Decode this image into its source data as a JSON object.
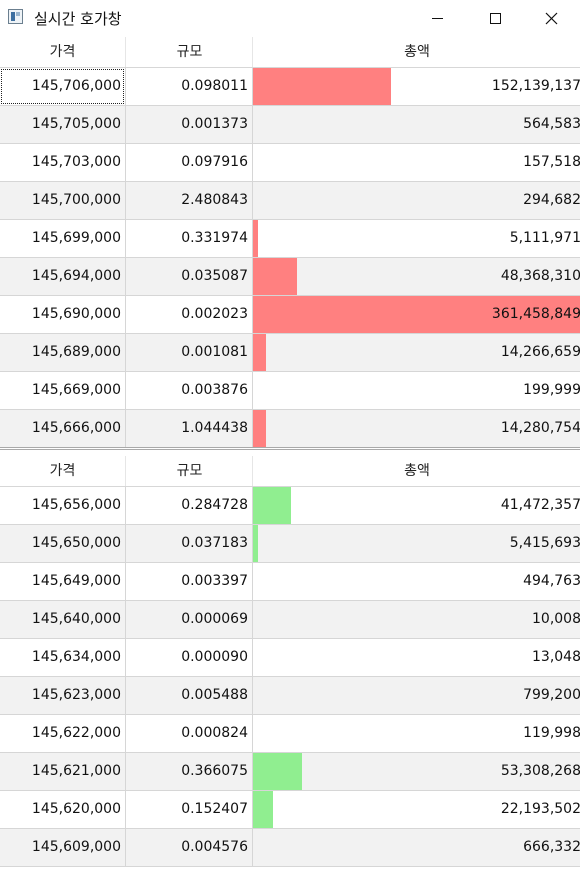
{
  "window": {
    "title": "실시간 호가창",
    "icon": "app-window-icon",
    "controls": [
      "minimize-icon",
      "maximize-icon",
      "close-icon"
    ]
  },
  "columns": {
    "price": "가격",
    "size": "규모",
    "total": "총액"
  },
  "colors": {
    "ask_bar": "#ff8080",
    "bid_bar": "#90ee90"
  },
  "ask": {
    "rows": [
      {
        "price": "145,706,000",
        "size": "0.098011",
        "total": "152,139,137",
        "bar_pct": 0.42
      },
      {
        "price": "145,705,000",
        "size": "0.001373",
        "total": "564,583",
        "bar_pct": 0
      },
      {
        "price": "145,703,000",
        "size": "0.097916",
        "total": "157,518",
        "bar_pct": 0
      },
      {
        "price": "145,700,000",
        "size": "2.480843",
        "total": "294,682",
        "bar_pct": 0
      },
      {
        "price": "145,699,000",
        "size": "0.331974",
        "total": "5,111,971",
        "bar_pct": 0.014
      },
      {
        "price": "145,694,000",
        "size": "0.035087",
        "total": "48,368,310",
        "bar_pct": 0.134
      },
      {
        "price": "145,690,000",
        "size": "0.002023",
        "total": "361,458,849",
        "bar_pct": 1.0
      },
      {
        "price": "145,689,000",
        "size": "0.001081",
        "total": "14,266,659",
        "bar_pct": 0.04
      },
      {
        "price": "145,669,000",
        "size": "0.003876",
        "total": "199,999",
        "bar_pct": 0
      },
      {
        "price": "145,666,000",
        "size": "1.044438",
        "total": "14,280,754",
        "bar_pct": 0.04
      }
    ]
  },
  "bid": {
    "rows": [
      {
        "price": "145,656,000",
        "size": "0.284728",
        "total": "41,472,357",
        "bar_pct": 0.115
      },
      {
        "price": "145,650,000",
        "size": "0.037183",
        "total": "5,415,693",
        "bar_pct": 0.015
      },
      {
        "price": "145,649,000",
        "size": "0.003397",
        "total": "494,763",
        "bar_pct": 0
      },
      {
        "price": "145,640,000",
        "size": "0.000069",
        "total": "10,008",
        "bar_pct": 0
      },
      {
        "price": "145,634,000",
        "size": "0.000090",
        "total": "13,048",
        "bar_pct": 0
      },
      {
        "price": "145,623,000",
        "size": "0.005488",
        "total": "799,200",
        "bar_pct": 0
      },
      {
        "price": "145,622,000",
        "size": "0.000824",
        "total": "119,998",
        "bar_pct": 0
      },
      {
        "price": "145,621,000",
        "size": "0.366075",
        "total": "53,308,268",
        "bar_pct": 0.148
      },
      {
        "price": "145,620,000",
        "size": "0.152407",
        "total": "22,193,502",
        "bar_pct": 0.062
      },
      {
        "price": "145,609,000",
        "size": "0.004576",
        "total": "666,332",
        "bar_pct": 0
      }
    ]
  }
}
